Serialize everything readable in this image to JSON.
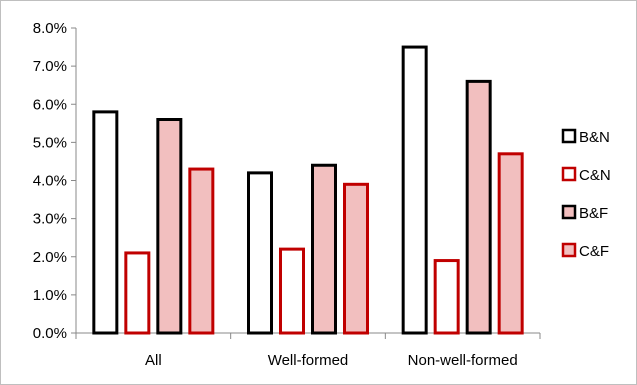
{
  "chart_data": {
    "type": "bar",
    "categories": [
      "All",
      "Well-formed",
      "Non-well-formed"
    ],
    "series": [
      {
        "name": "B&N",
        "values": [
          5.8,
          4.2,
          7.5
        ],
        "fill": "#ffffff",
        "stroke": "#000000"
      },
      {
        "name": "C&N",
        "values": [
          2.1,
          2.2,
          1.9
        ],
        "fill": "#ffffff",
        "stroke": "#c00000"
      },
      {
        "name": "B&F",
        "values": [
          5.6,
          4.4,
          6.6
        ],
        "fill": "#f2bfbf",
        "stroke": "#000000"
      },
      {
        "name": "C&F",
        "values": [
          4.3,
          3.9,
          4.7
        ],
        "fill": "#f2bfbf",
        "stroke": "#c00000"
      }
    ],
    "ylim": [
      0,
      8
    ],
    "yticks": [
      0,
      1,
      2,
      3,
      4,
      5,
      6,
      7,
      8
    ],
    "ytick_labels": [
      "0.0%",
      "1.0%",
      "2.0%",
      "3.0%",
      "4.0%",
      "5.0%",
      "6.0%",
      "7.0%",
      "8.0%"
    ],
    "legend_position": "right"
  }
}
